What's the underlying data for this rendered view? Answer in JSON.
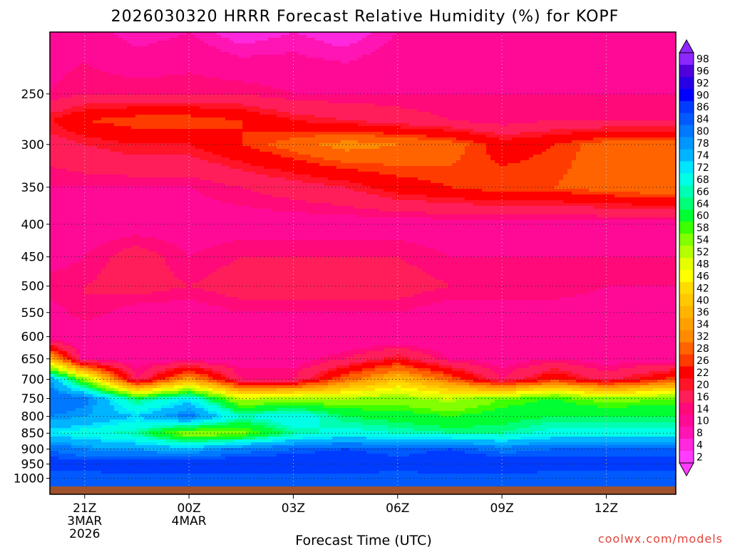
{
  "chart_data": {
    "type": "heatmap",
    "title": "2026030320 HRRR Forecast Relative Humidity (%) for KOPF",
    "xlabel": "Forecast Time (UTC)",
    "ylabel": "",
    "y_axis_scale": "log-pressure (inverted)",
    "y_ticks": [
      250,
      300,
      350,
      400,
      450,
      500,
      550,
      600,
      650,
      700,
      750,
      800,
      850,
      900,
      950,
      1000
    ],
    "x_ticks": [
      {
        "hour": 0,
        "label": "21Z",
        "sub1": "3MAR",
        "sub2": "2026"
      },
      {
        "hour": 3,
        "label": "00Z",
        "sub1": "4MAR",
        "sub2": ""
      },
      {
        "hour": 6,
        "label": "03Z",
        "sub1": "",
        "sub2": ""
      },
      {
        "hour": 9,
        "label": "06Z",
        "sub1": "",
        "sub2": ""
      },
      {
        "hour": 12,
        "label": "09Z",
        "sub1": "",
        "sub2": ""
      },
      {
        "hour": 15,
        "label": "12Z",
        "sub1": "",
        "sub2": ""
      }
    ],
    "xlim_hours": [
      -1,
      17
    ],
    "colorbar_levels": [
      2,
      4,
      8,
      10,
      14,
      16,
      20,
      22,
      26,
      28,
      32,
      34,
      36,
      40,
      42,
      46,
      48,
      52,
      54,
      58,
      60,
      64,
      66,
      68,
      72,
      74,
      78,
      80,
      84,
      86,
      90,
      92,
      96,
      98
    ],
    "colorbar_colors": [
      "#ff3cff",
      "#ff28dc",
      "#ff14b4",
      "#ff0a96",
      "#ff0a78",
      "#ff1e5a",
      "#ff1428",
      "#ff0000",
      "#ff3c00",
      "#ff6400",
      "#ff8c00",
      "#ffa000",
      "#ffb400",
      "#ffc800",
      "#ffdc00",
      "#ffff00",
      "#e6ff00",
      "#b4ff00",
      "#82ff00",
      "#3cff00",
      "#00ff32",
      "#00ff78",
      "#00ffb4",
      "#00ffe6",
      "#00e6ff",
      "#00b4ff",
      "#0096ff",
      "#0078ff",
      "#005aff",
      "#003cff",
      "#0000ff",
      "#2800e6",
      "#5000dc",
      "#8c28ff"
    ],
    "grid": true,
    "profiles": [
      {
        "hour": -1,
        "rh": {
          "200": 12,
          "250": 14,
          "275": 22,
          "300": 18,
          "350": 14,
          "400": 12,
          "450": 12,
          "500": 16,
          "550": 12,
          "600": 10,
          "650": 38,
          "700": 78,
          "750": 84,
          "800": 80,
          "850": 72,
          "900": 84,
          "950": 88,
          "1000": 84
        }
      },
      {
        "hour": 0,
        "rh": {
          "200": 12,
          "250": 16,
          "275": 26,
          "300": 20,
          "350": 14,
          "400": 12,
          "450": 14,
          "500": 16,
          "550": 16,
          "600": 10,
          "650": 12,
          "700": 56,
          "750": 82,
          "800": 78,
          "850": 70,
          "900": 80,
          "950": 88,
          "1000": 84
        }
      },
      {
        "hour": 1.5,
        "rh": {
          "200": 8,
          "250": 16,
          "275": 28,
          "300": 22,
          "350": 14,
          "400": 12,
          "450": 18,
          "500": 18,
          "550": 12,
          "600": 10,
          "650": 12,
          "700": 16,
          "750": 64,
          "800": 74,
          "850": 66,
          "900": 78,
          "950": 90,
          "1000": 84
        }
      },
      {
        "hour": 3,
        "rh": {
          "200": 10,
          "250": 16,
          "275": 28,
          "300": 22,
          "350": 14,
          "400": 12,
          "450": 14,
          "500": 16,
          "550": 12,
          "600": 10,
          "650": 12,
          "700": 36,
          "750": 72,
          "800": 82,
          "850": 54,
          "900": 76,
          "950": 90,
          "1000": 84
        }
      },
      {
        "hour": 4.5,
        "rh": {
          "200": 6,
          "250": 16,
          "275": 26,
          "300": 26,
          "350": 16,
          "400": 12,
          "450": 16,
          "500": 18,
          "550": 14,
          "600": 10,
          "650": 12,
          "700": 16,
          "750": 52,
          "800": 68,
          "850": 56,
          "900": 82,
          "950": 90,
          "1000": 84
        }
      },
      {
        "hour": 6,
        "rh": {
          "200": 8,
          "250": 14,
          "275": 22,
          "300": 30,
          "350": 18,
          "400": 12,
          "450": 16,
          "500": 18,
          "550": 14,
          "600": 10,
          "650": 12,
          "700": 16,
          "750": 54,
          "800": 72,
          "850": 66,
          "900": 84,
          "950": 90,
          "1000": 84
        }
      },
      {
        "hour": 7.5,
        "rh": {
          "200": 6,
          "250": 14,
          "275": 20,
          "300": 34,
          "350": 20,
          "400": 12,
          "450": 16,
          "500": 18,
          "550": 14,
          "600": 10,
          "650": 16,
          "700": 30,
          "750": 54,
          "800": 64,
          "850": 70,
          "900": 86,
          "950": 90,
          "1000": 84
        }
      },
      {
        "hour": 9,
        "rh": {
          "200": 10,
          "250": 14,
          "275": 18,
          "300": 32,
          "350": 24,
          "400": 12,
          "450": 16,
          "500": 18,
          "550": 14,
          "600": 10,
          "650": 22,
          "700": 40,
          "750": 56,
          "800": 62,
          "850": 68,
          "900": 84,
          "950": 88,
          "1000": 84
        }
      },
      {
        "hour": 10.5,
        "rh": {
          "200": 10,
          "250": 14,
          "275": 16,
          "300": 30,
          "350": 26,
          "400": 12,
          "450": 14,
          "500": 16,
          "550": 12,
          "600": 10,
          "650": 14,
          "700": 30,
          "750": 52,
          "800": 60,
          "850": 66,
          "900": 86,
          "950": 90,
          "1000": 84
        }
      },
      {
        "hour": 12,
        "rh": {
          "200": 10,
          "250": 14,
          "275": 14,
          "300": 24,
          "350": 28,
          "400": 12,
          "450": 14,
          "500": 16,
          "550": 12,
          "600": 10,
          "650": 12,
          "700": 16,
          "750": 58,
          "800": 62,
          "850": 66,
          "900": 82,
          "950": 90,
          "1000": 84
        }
      },
      {
        "hour": 13.5,
        "rh": {
          "200": 10,
          "250": 14,
          "275": 16,
          "300": 26,
          "350": 28,
          "400": 12,
          "450": 14,
          "500": 16,
          "550": 12,
          "600": 10,
          "650": 14,
          "700": 26,
          "750": 60,
          "800": 64,
          "850": 70,
          "900": 84,
          "950": 88,
          "1000": 84
        }
      },
      {
        "hour": 15,
        "rh": {
          "200": 10,
          "250": 14,
          "275": 16,
          "300": 30,
          "350": 30,
          "400": 12,
          "450": 14,
          "500": 14,
          "550": 12,
          "600": 10,
          "650": 12,
          "700": 18,
          "750": 56,
          "800": 64,
          "850": 70,
          "900": 84,
          "950": 88,
          "1000": 84
        }
      },
      {
        "hour": 17,
        "rh": {
          "200": 10,
          "250": 14,
          "275": 16,
          "300": 30,
          "350": 32,
          "400": 12,
          "450": 14,
          "500": 14,
          "550": 12,
          "600": 10,
          "650": 12,
          "700": 28,
          "750": 58,
          "800": 64,
          "850": 70,
          "900": 84,
          "950": 88,
          "1000": 84
        }
      }
    ]
  },
  "credit": "coolwx.com/models"
}
